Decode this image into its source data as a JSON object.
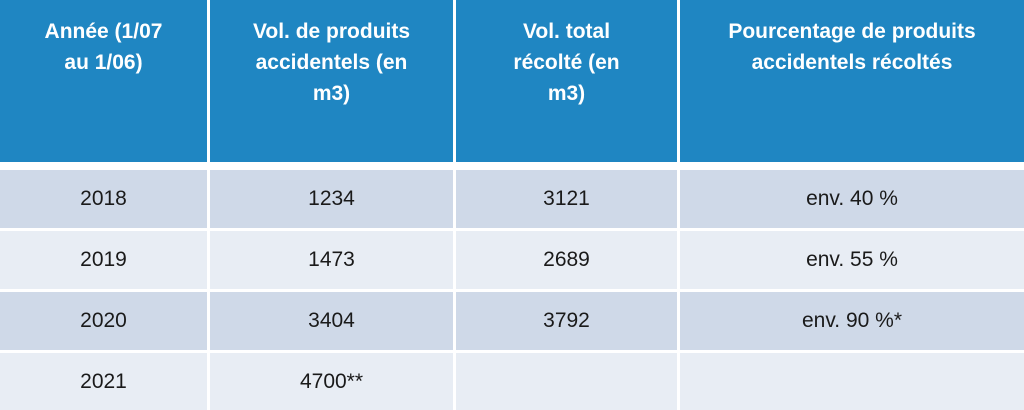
{
  "table": {
    "headers": [
      "Année (1/07\nau 1/06)",
      "Vol. de produits\naccidentels (en\nm3)",
      "Vol. total\nrécolté (en\nm3)",
      "Pourcentage de produits\naccidentels récoltés"
    ],
    "rows": [
      [
        "2018",
        "1234",
        "3121",
        "env. 40 %"
      ],
      [
        "2019",
        "1473",
        "2689",
        "env. 55 %"
      ],
      [
        "2020",
        "3404",
        "3792",
        "env. 90 %*"
      ],
      [
        "2021",
        "4700**",
        "",
        ""
      ]
    ],
    "colors": {
      "header_bg": "#1f86c2",
      "row_dark": "#cfd9e8",
      "row_light": "#e8edf4"
    }
  }
}
